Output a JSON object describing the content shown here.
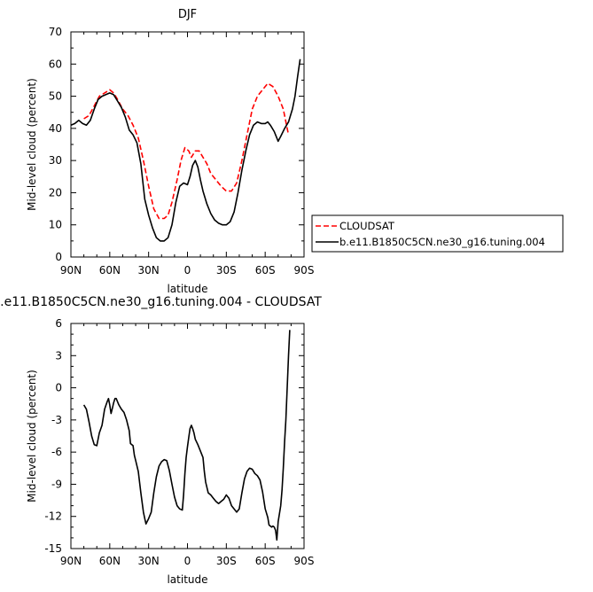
{
  "chart_data": [
    {
      "type": "line",
      "title": "DJF",
      "xlabel": "latitude",
      "ylabel": "Mid-level cloud (percent)",
      "xlim": [
        90,
        -90
      ],
      "ylim": [
        0,
        70
      ],
      "x_ticks": [
        90,
        60,
        30,
        0,
        -30,
        -60,
        -90
      ],
      "x_tick_labels": [
        "90N",
        "60N",
        "30N",
        "0",
        "30S",
        "60S",
        "90S"
      ],
      "y_ticks": [
        0,
        10,
        20,
        30,
        40,
        50,
        60,
        70
      ],
      "y_tick_labels": [
        "0",
        "10",
        "20",
        "30",
        "40",
        "50",
        "60",
        "70"
      ],
      "legend_position": "outside-right",
      "series": [
        {
          "name": "CLOUDSAT",
          "color": "#ff0000",
          "dash": "dashed",
          "points": [
            [
              80,
              43
            ],
            [
              76,
              44
            ],
            [
              72,
              47
            ],
            [
              68,
              50
            ],
            [
              64,
              51
            ],
            [
              60,
              52
            ],
            [
              57,
              51
            ],
            [
              54,
              49
            ],
            [
              50,
              46
            ],
            [
              46,
              44
            ],
            [
              42,
              41
            ],
            [
              38,
              37
            ],
            [
              34,
              30
            ],
            [
              30,
              22
            ],
            [
              26,
              15
            ],
            [
              22,
              12
            ],
            [
              18,
              12
            ],
            [
              15,
              13
            ],
            [
              12,
              17
            ],
            [
              8,
              24
            ],
            [
              5,
              30
            ],
            [
              2,
              34
            ],
            [
              -1,
              33
            ],
            [
              -3,
              31
            ],
            [
              -6,
              33
            ],
            [
              -9,
              33
            ],
            [
              -12,
              31
            ],
            [
              -15,
              29
            ],
            [
              -18,
              26
            ],
            [
              -22,
              24
            ],
            [
              -26,
              22
            ],
            [
              -30,
              20.5
            ],
            [
              -34,
              20.5
            ],
            [
              -38,
              23
            ],
            [
              -42,
              30
            ],
            [
              -46,
              38
            ],
            [
              -50,
              46
            ],
            [
              -54,
              50
            ],
            [
              -58,
              52
            ],
            [
              -62,
              54
            ],
            [
              -66,
              53
            ],
            [
              -70,
              50
            ],
            [
              -74,
              46
            ],
            [
              -77,
              40
            ],
            [
              -78,
              38
            ]
          ]
        },
        {
          "name": "b.e11.B1850C5CN.ne30_g16.tuning.004",
          "color": "#000000",
          "dash": "solid",
          "points": [
            [
              90,
              41
            ],
            [
              87,
              41.5
            ],
            [
              84,
              42.5
            ],
            [
              81,
              41.5
            ],
            [
              78,
              41
            ],
            [
              75,
              42.5
            ],
            [
              72,
              46
            ],
            [
              69,
              49
            ],
            [
              66,
              50
            ],
            [
              63,
              50.5
            ],
            [
              60,
              51
            ],
            [
              57,
              50.5
            ],
            [
              54,
              48.5
            ],
            [
              51,
              46.5
            ],
            [
              48,
              43.5
            ],
            [
              45,
              39.5
            ],
            [
              42,
              38
            ],
            [
              39,
              35.5
            ],
            [
              36,
              29
            ],
            [
              33,
              18
            ],
            [
              30,
              13
            ],
            [
              27,
              9
            ],
            [
              24,
              6
            ],
            [
              21,
              5
            ],
            [
              18,
              5
            ],
            [
              15,
              6
            ],
            [
              12,
              10
            ],
            [
              9,
              17
            ],
            [
              6,
              22
            ],
            [
              3,
              23
            ],
            [
              0,
              22.5
            ],
            [
              -2,
              25
            ],
            [
              -4,
              28.5
            ],
            [
              -6,
              30
            ],
            [
              -8,
              28
            ],
            [
              -10,
              24
            ],
            [
              -12,
              20.5
            ],
            [
              -15,
              16.5
            ],
            [
              -18,
              13.5
            ],
            [
              -21,
              11.5
            ],
            [
              -24,
              10.5
            ],
            [
              -27,
              10
            ],
            [
              -30,
              10
            ],
            [
              -33,
              11
            ],
            [
              -36,
              14
            ],
            [
              -39,
              20
            ],
            [
              -42,
              27
            ],
            [
              -45,
              33
            ],
            [
              -48,
              38
            ],
            [
              -51,
              41
            ],
            [
              -54,
              42
            ],
            [
              -57,
              41.5
            ],
            [
              -60,
              41.5
            ],
            [
              -62,
              42
            ],
            [
              -64,
              41
            ],
            [
              -67,
              39
            ],
            [
              -69,
              37
            ],
            [
              -70,
              36
            ],
            [
              -72,
              37.5
            ],
            [
              -75,
              40
            ],
            [
              -78,
              42
            ],
            [
              -81,
              46
            ],
            [
              -83,
              50
            ],
            [
              -85,
              56
            ],
            [
              -87,
              61.5
            ]
          ]
        }
      ]
    },
    {
      "type": "line",
      "title": ".e11.B1850C5CN.ne30_g16.tuning.004 - CLOUDSAT",
      "xlabel": "latitude",
      "ylabel": "Mid-level cloud (percent)",
      "xlim": [
        90,
        -90
      ],
      "ylim": [
        -15,
        6
      ],
      "x_ticks": [
        90,
        60,
        30,
        0,
        -30,
        -60,
        -90
      ],
      "x_tick_labels": [
        "90N",
        "60N",
        "30N",
        "0",
        "30S",
        "60S",
        "90S"
      ],
      "y_ticks": [
        -15,
        -12,
        -9,
        -6,
        -3,
        0,
        3,
        6
      ],
      "y_tick_labels": [
        "-15",
        "-12",
        "-9",
        "-6",
        "-3",
        "0",
        "3",
        "6"
      ],
      "series": [
        {
          "color": "#000000",
          "dash": "solid",
          "points": [
            [
              80,
              -1.6
            ],
            [
              78,
              -2.0
            ],
            [
              76,
              -3.2
            ],
            [
              74,
              -4.5
            ],
            [
              72,
              -5.3
            ],
            [
              70,
              -5.4
            ],
            [
              68,
              -4.2
            ],
            [
              66,
              -3.5
            ],
            [
              64,
              -2.0
            ],
            [
              62,
              -1.3
            ],
            [
              61,
              -1.0
            ],
            [
              60,
              -1.6
            ],
            [
              59,
              -2.4
            ],
            [
              58,
              -1.9
            ],
            [
              57,
              -1.4
            ],
            [
              56,
              -1.0
            ],
            [
              55,
              -1.0
            ],
            [
              54,
              -1.3
            ],
            [
              53,
              -1.6
            ],
            [
              51,
              -2.0
            ],
            [
              49,
              -2.3
            ],
            [
              47,
              -3.0
            ],
            [
              45,
              -4.0
            ],
            [
              44,
              -5.2
            ],
            [
              42,
              -5.4
            ],
            [
              41,
              -6.3
            ],
            [
              40,
              -6.8
            ],
            [
              38,
              -7.8
            ],
            [
              36,
              -9.8
            ],
            [
              34,
              -11.6
            ],
            [
              33,
              -12.2
            ],
            [
              32,
              -12.7
            ],
            [
              30,
              -12.2
            ],
            [
              28,
              -11.6
            ],
            [
              26,
              -9.8
            ],
            [
              24,
              -8.3
            ],
            [
              22,
              -7.3
            ],
            [
              20,
              -6.9
            ],
            [
              18,
              -6.7
            ],
            [
              16,
              -6.8
            ],
            [
              14,
              -7.7
            ],
            [
              12,
              -9.0
            ],
            [
              10,
              -10.2
            ],
            [
              8,
              -11.0
            ],
            [
              6,
              -11.3
            ],
            [
              4,
              -11.4
            ],
            [
              3,
              -10.0
            ],
            [
              2,
              -8.0
            ],
            [
              1,
              -6.5
            ],
            [
              0,
              -5.5
            ],
            [
              -1,
              -4.6
            ],
            [
              -2,
              -3.8
            ],
            [
              -3,
              -3.5
            ],
            [
              -4,
              -3.8
            ],
            [
              -5,
              -4.2
            ],
            [
              -6,
              -4.8
            ],
            [
              -8,
              -5.3
            ],
            [
              -10,
              -5.9
            ],
            [
              -12,
              -6.5
            ],
            [
              -13,
              -7.8
            ],
            [
              -14,
              -8.8
            ],
            [
              -16,
              -9.8
            ],
            [
              -18,
              -10.0
            ],
            [
              -20,
              -10.3
            ],
            [
              -22,
              -10.6
            ],
            [
              -24,
              -10.8
            ],
            [
              -26,
              -10.6
            ],
            [
              -28,
              -10.4
            ],
            [
              -30,
              -10.0
            ],
            [
              -32,
              -10.3
            ],
            [
              -34,
              -11.0
            ],
            [
              -36,
              -11.3
            ],
            [
              -38,
              -11.6
            ],
            [
              -40,
              -11.3
            ],
            [
              -42,
              -9.8
            ],
            [
              -44,
              -8.5
            ],
            [
              -46,
              -7.8
            ],
            [
              -48,
              -7.5
            ],
            [
              -50,
              -7.6
            ],
            [
              -52,
              -8.0
            ],
            [
              -54,
              -8.2
            ],
            [
              -56,
              -8.6
            ],
            [
              -58,
              -9.7
            ],
            [
              -60,
              -11.3
            ],
            [
              -62,
              -12.1
            ],
            [
              -63,
              -12.8
            ],
            [
              -64,
              -12.9
            ],
            [
              -65,
              -13.0
            ],
            [
              -66,
              -12.9
            ],
            [
              -67,
              -13.0
            ],
            [
              -68,
              -13.3
            ],
            [
              -69,
              -14.2
            ],
            [
              -70,
              -12.5
            ],
            [
              -72,
              -11.0
            ],
            [
              -73,
              -9.5
            ],
            [
              -74,
              -7.5
            ],
            [
              -75,
              -5.0
            ],
            [
              -76,
              -3.0
            ],
            [
              -77,
              0.0
            ],
            [
              -78,
              3.0
            ],
            [
              -79,
              5.4
            ]
          ]
        }
      ]
    }
  ]
}
